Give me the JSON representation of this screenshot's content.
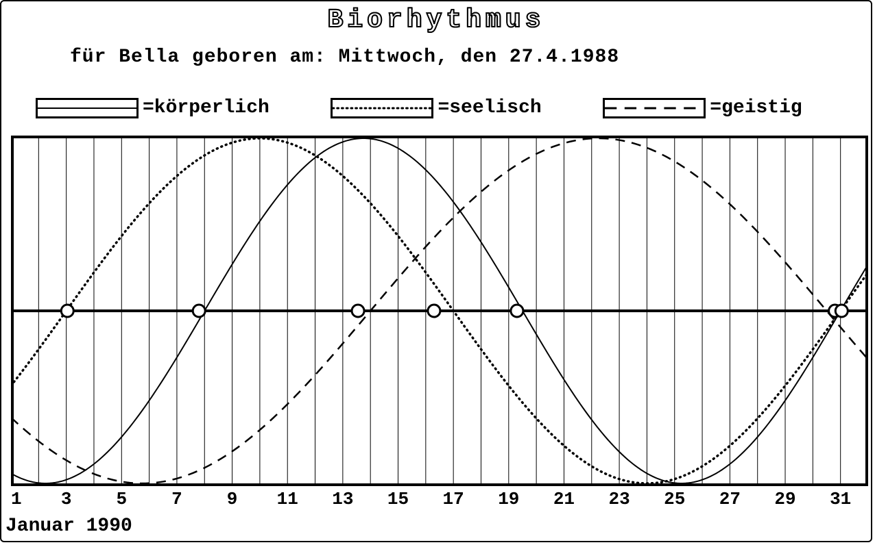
{
  "title": "Biorhythmus",
  "subtitle": "für Bella  geboren am: Mittwoch, den 27.4.1988",
  "month_label": "Januar 1990",
  "chart": {
    "type": "line",
    "background_color": "#ffffff",
    "border_color": "#000000",
    "border_width": 4,
    "grid_color": "#000000",
    "grid_width": 1,
    "midline_color": "#000000",
    "midline_width": 4,
    "ylim": [
      -1,
      1
    ],
    "x_start_day": 1,
    "x_end_day": 32,
    "x_tick_labels": [
      1,
      3,
      5,
      7,
      9,
      11,
      13,
      15,
      17,
      19,
      21,
      23,
      25,
      27,
      29,
      31
    ],
    "font_family": "Courier New",
    "label_fontsize": 26,
    "title_fontsize": 38,
    "days_since_birth_at_day1": 614,
    "series": [
      {
        "id": "physical",
        "label": "=körperlich",
        "period_days": 23,
        "style": "solid",
        "line_width": 2,
        "color": "#000000",
        "legend_swatch_style": "solid"
      },
      {
        "id": "emotional",
        "label": "=seelisch",
        "period_days": 28,
        "style": "dotted",
        "line_width": 2.5,
        "dot_spacing": 6,
        "color": "#000000",
        "legend_swatch_style": "dotted"
      },
      {
        "id": "intellectual",
        "label": "=geistig",
        "period_days": 33,
        "style": "dashed",
        "line_width": 2.5,
        "dash_pattern": "14 10",
        "color": "#000000",
        "legend_swatch_style": "dashed"
      }
    ],
    "zero_crossing_marker": {
      "shape": "circle",
      "radius": 9,
      "stroke": "#000000",
      "stroke_width": 3,
      "fill": "#ffffff"
    },
    "zero_crossings_days": [
      3.04,
      7.8,
      13.55,
      16.3,
      19.3,
      30.8,
      31.04
    ]
  }
}
